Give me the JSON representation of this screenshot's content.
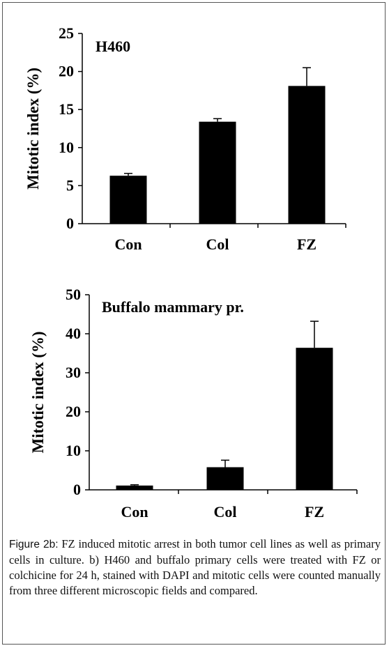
{
  "chart_data": [
    {
      "type": "bar",
      "title": "H460",
      "ylabel": "Mitotic index (%)",
      "categories": [
        "Con",
        "Col",
        "FZ"
      ],
      "values": [
        6.3,
        13.4,
        18.1
      ],
      "errors": [
        0.3,
        0.4,
        2.4
      ],
      "ylim": [
        0,
        25
      ],
      "yticks": [
        0,
        5,
        10,
        15,
        20,
        25
      ],
      "bar_color": "#000000",
      "grid": false
    },
    {
      "type": "bar",
      "title": "Buffalo mammary pr.",
      "ylabel": "Mitotic index (%)",
      "categories": [
        "Con",
        "Col",
        "FZ"
      ],
      "values": [
        1.1,
        5.8,
        36.4
      ],
      "errors": [
        0.2,
        1.8,
        6.8
      ],
      "ylim": [
        0,
        50
      ],
      "yticks": [
        0,
        10,
        20,
        30,
        40,
        50
      ],
      "bar_color": "#000000",
      "grid": false
    }
  ],
  "caption": {
    "label": "Figure 2b:",
    "text": " FZ induced mitotic arrest in both tumor cell lines as well as primary cells in culture. b) H460 and buffalo primary cells were treated with FZ or colchicine for 24 h, stained with DAPI and mitotic cells were counted manually from three different microscopic fields and compared."
  }
}
